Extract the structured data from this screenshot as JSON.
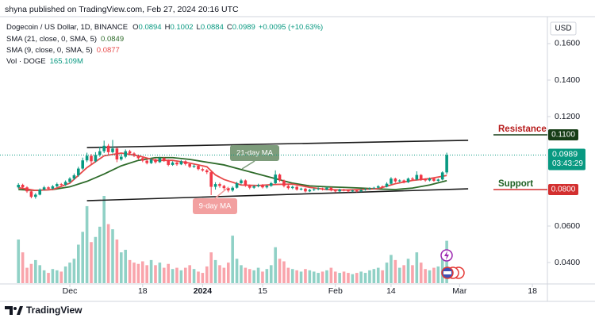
{
  "header": "shyna published on TradingView.com, Feb 27, 2024 20:16 UTC",
  "footer": "TradingView",
  "chart_data": {
    "type": "candlestick",
    "title": "Dogecoin / US Dollar, 1D, BINANCE",
    "ohlc_letters": [
      "O",
      "H",
      "L",
      "C"
    ],
    "change_label": "+0.0095 (+10.63%)",
    "currency": "USD",
    "countdown": "03:43:29",
    "up_color": "#089981",
    "down_color": "#f23645",
    "volume_name": "Vol · DOGE",
    "volume_label": "165.109M",
    "x": [
      -12,
      -11,
      -10,
      -9,
      -8,
      -7,
      -6,
      -5,
      -4,
      -3,
      -2,
      -1,
      0,
      1,
      2,
      3,
      4,
      5,
      6,
      7,
      8,
      9,
      10,
      11,
      12,
      13,
      14,
      15,
      16,
      17,
      18,
      19,
      20,
      21,
      22,
      23,
      24,
      25,
      26,
      27,
      28,
      29,
      30,
      31,
      32,
      33,
      34,
      35,
      36,
      37,
      38,
      39,
      40,
      41,
      42,
      43,
      44,
      45,
      46,
      47,
      48,
      49,
      50,
      51,
      52,
      53,
      54,
      55,
      56,
      57,
      58,
      59,
      60,
      61,
      62,
      63,
      64,
      65,
      66,
      67,
      68,
      69,
      70,
      71,
      72,
      73,
      74,
      75,
      76,
      77,
      78,
      79,
      80,
      81,
      82,
      83,
      84,
      85,
      86,
      87,
      88
    ],
    "open": [
      0.0812,
      0.0826,
      0.0812,
      0.079,
      0.076,
      0.0772,
      0.08,
      0.0812,
      0.0805,
      0.0818,
      0.083,
      0.0826,
      0.0842,
      0.086,
      0.0878,
      0.0915,
      0.096,
      0.0985,
      0.0955,
      0.099,
      0.101,
      0.104,
      0.1005,
      0.1025,
      0.0965,
      0.098,
      0.101,
      0.0998,
      0.0985,
      0.0972,
      0.0958,
      0.0945,
      0.0965,
      0.095,
      0.0972,
      0.096,
      0.0935,
      0.0948,
      0.0938,
      0.0955,
      0.094,
      0.0925,
      0.093,
      0.0912,
      0.0905,
      0.0895,
      0.0815,
      0.083,
      0.082,
      0.0808,
      0.0795,
      0.081,
      0.0835,
      0.085,
      0.0822,
      0.081,
      0.0818,
      0.0825,
      0.0812,
      0.082,
      0.0835,
      0.0882,
      0.085,
      0.082,
      0.0808,
      0.0815,
      0.08,
      0.0805,
      0.079,
      0.0798,
      0.0802,
      0.0806,
      0.08,
      0.081,
      0.0795,
      0.079,
      0.08,
      0.0796,
      0.079,
      0.0795,
      0.079,
      0.0798,
      0.0802,
      0.0806,
      0.081,
      0.0818,
      0.0815,
      0.0832,
      0.086,
      0.0845,
      0.085,
      0.084,
      0.086,
      0.0855,
      0.088,
      0.0856,
      0.085,
      0.086,
      0.0848,
      0.0855,
      0.0894
    ],
    "high": [
      0.0835,
      0.0832,
      0.0818,
      0.0795,
      0.078,
      0.0806,
      0.082,
      0.0818,
      0.0825,
      0.0838,
      0.0836,
      0.085,
      0.0868,
      0.0888,
      0.0925,
      0.0975,
      0.1002,
      0.0995,
      0.1005,
      0.1035,
      0.1068,
      0.105,
      0.1072,
      0.103,
      0.0995,
      0.102,
      0.1018,
      0.1005,
      0.0992,
      0.098,
      0.0965,
      0.0972,
      0.097,
      0.098,
      0.0978,
      0.0965,
      0.0955,
      0.0952,
      0.0962,
      0.096,
      0.0945,
      0.0938,
      0.0935,
      0.092,
      0.0912,
      0.09,
      0.084,
      0.0838,
      0.0826,
      0.0815,
      0.0818,
      0.0842,
      0.0858,
      0.0855,
      0.0828,
      0.0825,
      0.0832,
      0.083,
      0.0826,
      0.0842,
      0.0905,
      0.0888,
      0.0855,
      0.0826,
      0.0822,
      0.082,
      0.081,
      0.081,
      0.0804,
      0.0808,
      0.0812,
      0.081,
      0.0815,
      0.0814,
      0.08,
      0.0805,
      0.0804,
      0.08,
      0.08,
      0.08,
      0.0803,
      0.0808,
      0.0812,
      0.0815,
      0.0824,
      0.0822,
      0.084,
      0.0868,
      0.0865,
      0.0856,
      0.0855,
      0.0866,
      0.0868,
      0.09,
      0.0885,
      0.0862,
      0.0866,
      0.0864,
      0.086,
      0.09,
      0.1002
    ],
    "low": [
      0.0805,
      0.0805,
      0.0782,
      0.0752,
      0.075,
      0.0768,
      0.0795,
      0.0798,
      0.08,
      0.0812,
      0.0818,
      0.082,
      0.0836,
      0.0852,
      0.087,
      0.0908,
      0.095,
      0.094,
      0.0948,
      0.098,
      0.1,
      0.099,
      0.0998,
      0.095,
      0.0958,
      0.0972,
      0.0988,
      0.0978,
      0.0965,
      0.095,
      0.0938,
      0.094,
      0.0942,
      0.0946,
      0.0952,
      0.0928,
      0.093,
      0.093,
      0.0934,
      0.0932,
      0.0918,
      0.0918,
      0.0905,
      0.0898,
      0.0885,
      0.077,
      0.08,
      0.081,
      0.0798,
      0.0785,
      0.0788,
      0.0805,
      0.0828,
      0.0815,
      0.0802,
      0.0804,
      0.0812,
      0.0806,
      0.0806,
      0.0815,
      0.083,
      0.0842,
      0.0812,
      0.08,
      0.0802,
      0.0794,
      0.0795,
      0.0784,
      0.0786,
      0.0792,
      0.0796,
      0.0795,
      0.0796,
      0.079,
      0.0784,
      0.0786,
      0.079,
      0.0785,
      0.0786,
      0.0785,
      0.0786,
      0.0794,
      0.0798,
      0.0802,
      0.0805,
      0.081,
      0.0812,
      0.0828,
      0.0838,
      0.084,
      0.0834,
      0.0836,
      0.0848,
      0.085,
      0.0848,
      0.0843,
      0.0845,
      0.0842,
      0.0843,
      0.085,
      0.0884
    ],
    "close": [
      0.0826,
      0.0812,
      0.079,
      0.076,
      0.0772,
      0.08,
      0.0812,
      0.0805,
      0.0818,
      0.083,
      0.0826,
      0.0842,
      0.086,
      0.0878,
      0.0915,
      0.096,
      0.0985,
      0.0955,
      0.099,
      0.101,
      0.104,
      0.1005,
      0.1025,
      0.0965,
      0.098,
      0.101,
      0.0998,
      0.0985,
      0.0972,
      0.0958,
      0.0945,
      0.0965,
      0.095,
      0.0972,
      0.096,
      0.0935,
      0.0948,
      0.0938,
      0.0955,
      0.094,
      0.0925,
      0.093,
      0.0912,
      0.0905,
      0.0895,
      0.0815,
      0.083,
      0.082,
      0.0808,
      0.0795,
      0.081,
      0.0835,
      0.085,
      0.0822,
      0.081,
      0.0818,
      0.0825,
      0.0812,
      0.082,
      0.0835,
      0.0882,
      0.085,
      0.082,
      0.0808,
      0.0815,
      0.08,
      0.0805,
      0.079,
      0.0798,
      0.0802,
      0.0806,
      0.08,
      0.081,
      0.0795,
      0.079,
      0.08,
      0.0796,
      0.079,
      0.0795,
      0.079,
      0.0798,
      0.0802,
      0.0806,
      0.081,
      0.0818,
      0.0815,
      0.0832,
      0.086,
      0.0845,
      0.085,
      0.084,
      0.086,
      0.0855,
      0.088,
      0.0856,
      0.085,
      0.086,
      0.0848,
      0.0855,
      0.0894,
      0.0989
    ],
    "volume": [
      170,
      120,
      60,
      75,
      90,
      70,
      50,
      40,
      55,
      50,
      45,
      65,
      80,
      95,
      150,
      200,
      300,
      160,
      180,
      220,
      340,
      230,
      210,
      170,
      120,
      130,
      90,
      80,
      75,
      85,
      70,
      90,
      70,
      80,
      60,
      75,
      55,
      60,
      50,
      60,
      70,
      55,
      45,
      40,
      65,
      120,
      90,
      70,
      60,
      80,
      185,
      95,
      70,
      60,
      55,
      50,
      60,
      45,
      55,
      70,
      140,
      95,
      85,
      60,
      55,
      50,
      45,
      55,
      50,
      45,
      40,
      45,
      50,
      60,
      45,
      40,
      45,
      40,
      35,
      40,
      45,
      40,
      50,
      55,
      60,
      50,
      80,
      110,
      90,
      60,
      70,
      95,
      70,
      120,
      80,
      55,
      50,
      60,
      65,
      100,
      165.109
    ],
    "ma": [
      {
        "name": "SMA (21, close, 0, SMA, 5)",
        "color": "#2e6b2a",
        "annotation": "21-day MA",
        "x": [
          -12,
          -8,
          -4,
          0,
          4,
          8,
          12,
          16,
          20,
          24,
          28,
          32,
          36,
          40,
          44,
          48,
          52,
          56,
          60,
          64,
          68,
          72,
          76,
          80,
          84,
          88
        ],
        "values": [
          0.08,
          0.0795,
          0.08,
          0.0815,
          0.0845,
          0.0885,
          0.093,
          0.096,
          0.0975,
          0.0975,
          0.0965,
          0.095,
          0.0935,
          0.091,
          0.0885,
          0.086,
          0.0835,
          0.082,
          0.0815,
          0.0812,
          0.0808,
          0.0803,
          0.08,
          0.0808,
          0.0825,
          0.0849
        ]
      },
      {
        "name": "SMA (9, close, 0, SMA, 5)",
        "color": "#e84a4a",
        "annotation": "9-day MA",
        "x": [
          -12,
          -8,
          -4,
          0,
          4,
          8,
          12,
          16,
          20,
          24,
          28,
          32,
          34,
          36,
          40,
          44,
          48,
          52,
          56,
          60,
          64,
          68,
          72,
          76,
          80,
          84,
          88
        ],
        "values": [
          0.081,
          0.0795,
          0.08,
          0.0835,
          0.092,
          0.0985,
          0.1,
          0.0985,
          0.096,
          0.096,
          0.0945,
          0.0925,
          0.088,
          0.0855,
          0.0825,
          0.0822,
          0.0828,
          0.083,
          0.0812,
          0.08,
          0.0797,
          0.08,
          0.0805,
          0.0832,
          0.085,
          0.086,
          0.0877
        ]
      }
    ],
    "trendlines": [
      {
        "x": [
          4,
          93
        ],
        "values": [
          0.103,
          0.107
        ]
      },
      {
        "x": [
          4,
          93
        ],
        "values": [
          0.0739,
          0.0804
        ]
      }
    ],
    "levels": [
      {
        "name": "Resistance",
        "value": 0.11,
        "label": "0.1100",
        "text_color": "#b71c1c",
        "box_color": "#163d16"
      },
      {
        "name": "Support",
        "value": 0.08,
        "label": "0.0800",
        "text_color": "#1b5e20",
        "box_color": "#d32f2f"
      }
    ],
    "xlim": [
      -16.3,
      111.5
    ],
    "xticks": [
      {
        "value": 0,
        "label": "Dec"
      },
      {
        "value": 17,
        "label": "18"
      },
      {
        "value": 31,
        "label": "2024"
      },
      {
        "value": 45,
        "label": "15"
      },
      {
        "value": 62,
        "label": "Feb"
      },
      {
        "value": 75,
        "label": "14"
      },
      {
        "value": 91,
        "label": "Mar"
      },
      {
        "value": 108,
        "label": "18"
      }
    ],
    "ylim": [
      0.0274,
      0.1752
    ],
    "yticks": [
      {
        "value": 0.16,
        "label": "0.1600"
      },
      {
        "value": 0.14,
        "label": "0.1400"
      },
      {
        "value": 0.12,
        "label": "0.1200"
      },
      {
        "value": 0.06,
        "label": "0.0600"
      },
      {
        "value": 0.04,
        "label": "0.0400"
      }
    ],
    "grid": false
  }
}
